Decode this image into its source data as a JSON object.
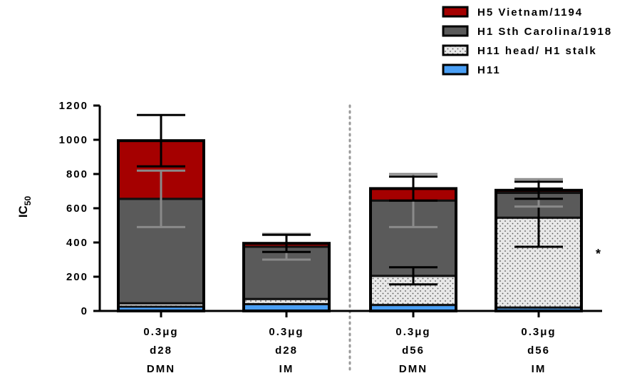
{
  "chart_data": {
    "type": "bar",
    "stacked": true,
    "ylabel": "IC",
    "ylabel_subscript": "50",
    "ylim": [
      0,
      1200
    ],
    "yticks": [
      "0",
      "200",
      "400",
      "600",
      "800",
      "1000",
      "1200"
    ],
    "ytick_values": [
      0,
      200,
      400,
      600,
      800,
      1000,
      1200
    ],
    "categories": [
      [
        "0.3μg",
        "d28",
        "DMN"
      ],
      [
        "0.3μg",
        "d28",
        "IM"
      ],
      [
        "0.3μg",
        "d56",
        "DMN"
      ],
      [
        "0.3μg",
        "d56",
        "IM"
      ]
    ],
    "divider_after_category": 1,
    "legend_position": "top-right",
    "series": [
      {
        "name": "H11",
        "color": "#4a9ff5",
        "pattern": "solid",
        "values": [
          25,
          40,
          35,
          20
        ],
        "errors": [
          null,
          null,
          null,
          null
        ]
      },
      {
        "name": "H11 head/ H1 stalk",
        "color": "#e8e8e8",
        "pattern": "dotted",
        "values": [
          20,
          30,
          170,
          525
        ],
        "errors": [
          null,
          null,
          50,
          170
        ]
      },
      {
        "name": "H1 Sth Carolina/1918",
        "color": "#5a5a5a",
        "pattern": "solid",
        "values": [
          610,
          305,
          440,
          145
        ],
        "errors": [
          165,
          75,
          155,
          80
        ]
      },
      {
        "name": "H5 Vietnam/1194",
        "color": "#a50000",
        "pattern": "solid",
        "values": [
          340,
          20,
          70,
          15
        ],
        "errors": [
          150,
          50,
          70,
          50
        ]
      }
    ],
    "legend_order": [
      "H5 Vietnam/1194",
      "H1 Sth Carolina/1918",
      "H11 head/ H1 stalk",
      "H11"
    ],
    "annotations": [
      {
        "category_index": 3,
        "text": "*",
        "y": 350
      }
    ]
  }
}
